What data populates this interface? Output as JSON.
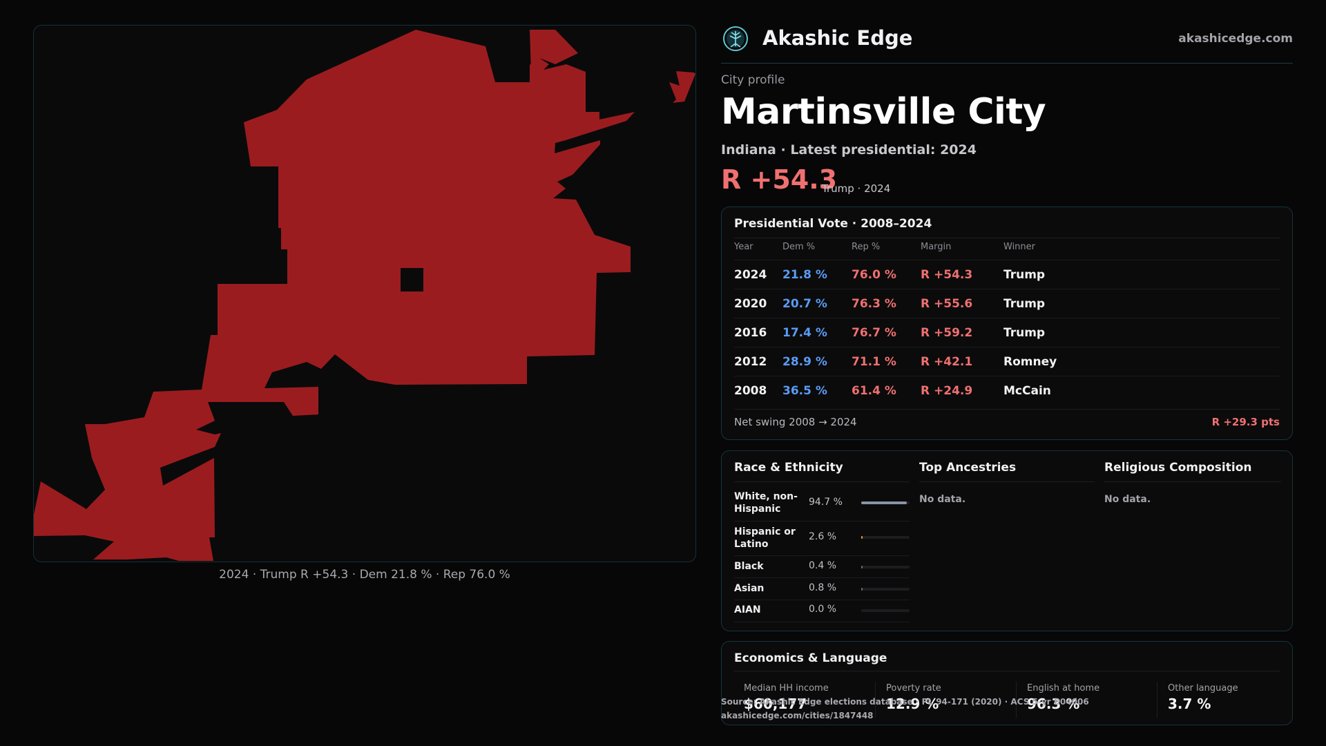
{
  "map": {
    "caption": "2024 · Trump R +54.3 · Dem 21.8 % · Rep 76.0 %",
    "fill_color": "#9b1c1f"
  },
  "brand": {
    "name": "Akashic Edge",
    "site": "akashicedge.com",
    "logo_icon": "tree-emblem-icon"
  },
  "header": {
    "kicker": "City profile",
    "title": "Martinsville City",
    "subtitle": "Indiana · Latest presidential: 2024",
    "margin": "R +54.3",
    "margin_note": "Trump · 2024"
  },
  "presidential": {
    "title": "Presidential Vote · 2008–2024",
    "columns": [
      "Year",
      "Dem %",
      "Rep %",
      "Margin",
      "Winner"
    ],
    "rows": [
      {
        "year": "2024",
        "dem": "21.8 %",
        "rep": "76.0 %",
        "margin": "R +54.3",
        "winner": "Trump"
      },
      {
        "year": "2020",
        "dem": "20.7 %",
        "rep": "76.3 %",
        "margin": "R +55.6",
        "winner": "Trump"
      },
      {
        "year": "2016",
        "dem": "17.4 %",
        "rep": "76.7 %",
        "margin": "R +59.2",
        "winner": "Trump"
      },
      {
        "year": "2012",
        "dem": "28.9 %",
        "rep": "71.1 %",
        "margin": "R +42.1",
        "winner": "Romney"
      },
      {
        "year": "2008",
        "dem": "36.5 %",
        "rep": "61.4 %",
        "margin": "R +24.9",
        "winner": "McCain"
      }
    ],
    "swing_label": "Net swing 2008 → 2024",
    "swing_value": "R +29.3 pts"
  },
  "race": {
    "title": "Race & Ethnicity",
    "rows": [
      {
        "label": "White, non-Hispanic",
        "pct": "94.7 %",
        "fraction": 0.947,
        "color": "#8a94a6"
      },
      {
        "label": "Hispanic or Latino",
        "pct": "2.6 %",
        "fraction": 0.026,
        "color": "#e0a030"
      },
      {
        "label": "Black",
        "pct": "0.4 %",
        "fraction": 0.004,
        "color": "#6c6c72"
      },
      {
        "label": "Asian",
        "pct": "0.8 %",
        "fraction": 0.008,
        "color": "#6c6c72"
      },
      {
        "label": "AIAN",
        "pct": "0.0 %",
        "fraction": 0.0,
        "color": "#6c6c72"
      }
    ]
  },
  "ancestries": {
    "title": "Top Ancestries",
    "empty": "No data."
  },
  "religion": {
    "title": "Religious Composition",
    "empty": "No data."
  },
  "economics": {
    "title": "Economics & Language",
    "metrics": [
      {
        "label": "Median HH income",
        "value": "$60,177"
      },
      {
        "label": "Poverty rate",
        "value": "12.9 %"
      },
      {
        "label": "English at home",
        "value": "96.3 %"
      },
      {
        "label": "Other language",
        "value": "3.7 %"
      }
    ]
  },
  "source": {
    "line1": "Source: Akashic Edge elections database · PL 94-171 (2020) · ACS 5-yr B04006",
    "line2": "akashicedge.com/cities/1847448"
  }
}
